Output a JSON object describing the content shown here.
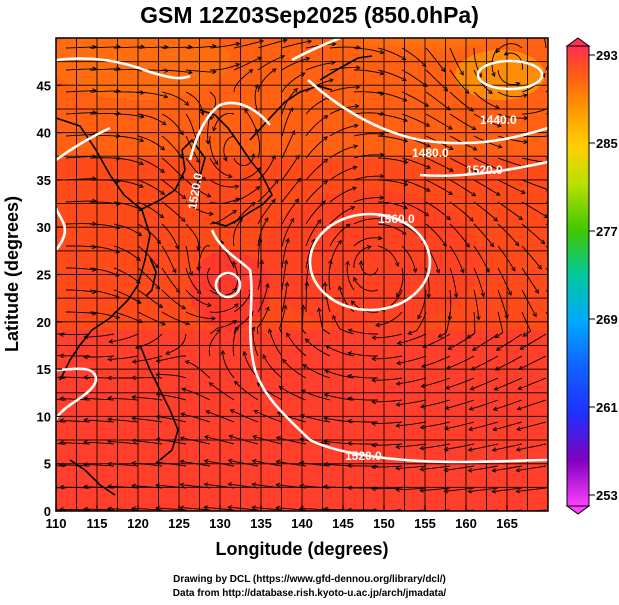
{
  "title": "GSM 12Z03Sep2025 (850.0hPa)",
  "x_axis": {
    "label": "Longitude (degrees)",
    "ticks": [
      "110",
      "115",
      "120",
      "125",
      "130",
      "135",
      "140",
      "145",
      "150",
      "155",
      "160",
      "165"
    ],
    "range": [
      110,
      170
    ]
  },
  "y_axis": {
    "label": "Latitude  (degrees)",
    "ticks": [
      "0",
      "5",
      "10",
      "15",
      "20",
      "25",
      "30",
      "35",
      "40",
      "45"
    ],
    "range": [
      0,
      50
    ]
  },
  "colorbar": {
    "labels": [
      "293",
      "285",
      "277",
      "269",
      "261",
      "253"
    ],
    "min": 253,
    "max": 293,
    "colors": [
      "#ff3050",
      "#ff4a1a",
      "#ff8a00",
      "#ffc400",
      "#c8e600",
      "#58d000",
      "#00c0a0",
      "#00a8ff",
      "#2040ff",
      "#1010a0",
      "#8000c0",
      "#ff40ff"
    ]
  },
  "contour_labels": [
    "1440.0",
    "1480.0",
    "1520.0",
    "1560.0",
    "1520.0",
    "1520.0"
  ],
  "credits": {
    "line1": "Drawing by DCL (https://www.gfd-dennou.org/library/dcl/)",
    "line2": "Data from http://database.rish.kyoto-u.ac.jp/arch/jmadata/"
  }
}
